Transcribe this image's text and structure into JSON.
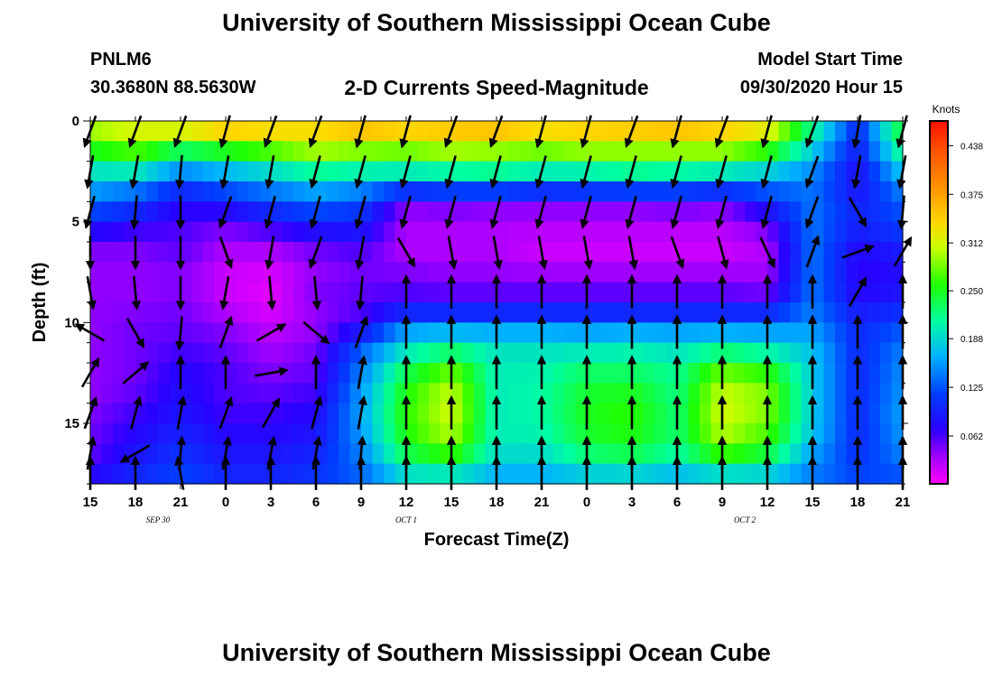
{
  "header": {
    "title": "University of Southern Mississippi Ocean Cube",
    "station": "PNLM6",
    "coords": "30.3680N 88.5630W",
    "subtitle": "2-D Currents Speed-Magnitude",
    "start_label": "Model Start Time",
    "start_value": "09/30/2020 Hour 15"
  },
  "footer": {
    "title": "University of Southern Mississippi Ocean Cube"
  },
  "chart_data": {
    "type": "heatmap",
    "xlabel": "Forecast Time(Z)",
    "ylabel": "Depth (ft)",
    "x_ticks": [
      "15",
      "18",
      "21",
      "0",
      "3",
      "6",
      "9",
      "12",
      "15",
      "18",
      "21",
      "0",
      "3",
      "6",
      "9",
      "12",
      "15",
      "18",
      "21"
    ],
    "date_labels": [
      {
        "label": "SEP 30",
        "at_hour": 4.5
      },
      {
        "label": "OCT 1",
        "at_hour": 21
      },
      {
        "label": "OCT 2",
        "at_hour": 43.5
      }
    ],
    "xlim_hours": [
      0,
      54
    ],
    "y_ticks": [
      0,
      5,
      10,
      15
    ],
    "ylim_ft": [
      0,
      18
    ],
    "colorbar": {
      "label": "Knots",
      "ticks": [
        "0.438",
        "0.375",
        "0.312",
        "0.250",
        "0.188",
        "0.125",
        "0.062"
      ],
      "tick_values": [
        0.438,
        0.375,
        0.312,
        0.25,
        0.188,
        0.125,
        0.062
      ],
      "range": [
        0,
        0.47
      ]
    },
    "depth_levels_ft": [
      0.25,
      1.0,
      2.0,
      3.0,
      4.0,
      5.0,
      6.0,
      7.0,
      8.0,
      9.0,
      10.0,
      11.0,
      12.0,
      13.0,
      14.0,
      15.0,
      16.0,
      17.0,
      17.75
    ],
    "speed_profile_knots": {
      "columns_hours": [
        0,
        3,
        6,
        9,
        12,
        15,
        18,
        21,
        24,
        27,
        30,
        33,
        36,
        39,
        42,
        45,
        48,
        51,
        54
      ],
      "note": "speed (knots) for each depth level, per column",
      "values": [
        [
          0.3,
          0.32,
          0.33,
          0.36,
          0.34,
          0.33,
          0.36,
          0.35,
          0.35,
          0.36,
          0.34,
          0.34,
          0.35,
          0.36,
          0.34,
          0.33,
          0.22,
          0.1,
          0.25
        ],
        [
          0.28,
          0.3,
          0.28,
          0.3,
          0.32,
          0.34,
          0.33,
          0.32,
          0.34,
          0.33,
          0.32,
          0.34,
          0.33,
          0.33,
          0.34,
          0.3,
          0.2,
          0.1,
          0.24
        ],
        [
          0.22,
          0.24,
          0.18,
          0.2,
          0.22,
          0.25,
          0.24,
          0.24,
          0.25,
          0.25,
          0.24,
          0.24,
          0.25,
          0.25,
          0.24,
          0.22,
          0.16,
          0.08,
          0.2
        ],
        [
          0.17,
          0.16,
          0.12,
          0.14,
          0.16,
          0.18,
          0.17,
          0.16,
          0.17,
          0.18,
          0.16,
          0.17,
          0.18,
          0.17,
          0.16,
          0.15,
          0.14,
          0.08,
          0.16
        ],
        [
          0.14,
          0.12,
          0.08,
          0.1,
          0.12,
          0.14,
          0.12,
          0.05,
          0.06,
          0.05,
          0.05,
          0.05,
          0.05,
          0.06,
          0.05,
          0.1,
          0.14,
          0.09,
          0.13
        ],
        [
          0.1,
          0.08,
          0.06,
          0.05,
          0.08,
          0.1,
          0.1,
          0.03,
          0.03,
          0.03,
          0.03,
          0.03,
          0.03,
          0.03,
          0.03,
          0.06,
          0.14,
          0.1,
          0.12
        ],
        [
          0.05,
          0.05,
          0.06,
          0.04,
          0.04,
          0.06,
          0.07,
          0.03,
          0.03,
          0.03,
          0.02,
          0.02,
          0.02,
          0.02,
          0.02,
          0.03,
          0.14,
          0.08,
          0.1
        ],
        [
          0.04,
          0.04,
          0.05,
          0.02,
          0.02,
          0.04,
          0.05,
          0.03,
          0.03,
          0.03,
          0.02,
          0.02,
          0.02,
          0.02,
          0.02,
          0.03,
          0.14,
          0.07,
          0.08
        ],
        [
          0.04,
          0.04,
          0.04,
          0.02,
          0.01,
          0.04,
          0.05,
          0.06,
          0.05,
          0.05,
          0.05,
          0.05,
          0.05,
          0.05,
          0.05,
          0.04,
          0.14,
          0.07,
          0.08
        ],
        [
          0.04,
          0.04,
          0.05,
          0.02,
          0.01,
          0.05,
          0.06,
          0.06,
          0.06,
          0.06,
          0.06,
          0.06,
          0.06,
          0.06,
          0.06,
          0.06,
          0.14,
          0.08,
          0.09
        ],
        [
          0.04,
          0.05,
          0.05,
          0.04,
          0.02,
          0.03,
          0.06,
          0.14,
          0.14,
          0.14,
          0.14,
          0.14,
          0.14,
          0.14,
          0.14,
          0.14,
          0.15,
          0.1,
          0.12
        ],
        [
          0.04,
          0.05,
          0.06,
          0.05,
          0.03,
          0.05,
          0.12,
          0.18,
          0.2,
          0.19,
          0.19,
          0.18,
          0.19,
          0.18,
          0.19,
          0.18,
          0.17,
          0.1,
          0.14
        ],
        [
          0.04,
          0.05,
          0.07,
          0.06,
          0.04,
          0.05,
          0.14,
          0.22,
          0.26,
          0.2,
          0.2,
          0.22,
          0.22,
          0.21,
          0.26,
          0.24,
          0.18,
          0.1,
          0.15
        ],
        [
          0.04,
          0.05,
          0.08,
          0.06,
          0.05,
          0.06,
          0.15,
          0.25,
          0.3,
          0.2,
          0.21,
          0.24,
          0.24,
          0.22,
          0.3,
          0.28,
          0.18,
          0.1,
          0.15
        ],
        [
          0.04,
          0.06,
          0.08,
          0.06,
          0.06,
          0.07,
          0.16,
          0.26,
          0.31,
          0.2,
          0.21,
          0.25,
          0.26,
          0.22,
          0.31,
          0.29,
          0.18,
          0.1,
          0.16
        ],
        [
          0.05,
          0.07,
          0.09,
          0.07,
          0.07,
          0.08,
          0.16,
          0.26,
          0.31,
          0.2,
          0.21,
          0.25,
          0.26,
          0.23,
          0.31,
          0.28,
          0.18,
          0.1,
          0.16
        ],
        [
          0.05,
          0.08,
          0.1,
          0.08,
          0.08,
          0.09,
          0.15,
          0.25,
          0.29,
          0.2,
          0.2,
          0.24,
          0.25,
          0.22,
          0.29,
          0.26,
          0.17,
          0.1,
          0.15
        ],
        [
          0.06,
          0.09,
          0.11,
          0.09,
          0.09,
          0.1,
          0.14,
          0.22,
          0.24,
          0.18,
          0.18,
          0.21,
          0.22,
          0.2,
          0.24,
          0.22,
          0.15,
          0.11,
          0.14
        ],
        [
          0.08,
          0.1,
          0.12,
          0.1,
          0.1,
          0.11,
          0.13,
          0.18,
          0.18,
          0.16,
          0.16,
          0.17,
          0.17,
          0.16,
          0.17,
          0.17,
          0.14,
          0.12,
          0.12
        ]
      ]
    },
    "vectors_note": "current direction arrows; angle in degrees clockwise from north (up)",
    "vector_depths_ft": [
      0.5,
      2.5,
      4.5,
      6.5,
      8.5,
      10.5,
      12.5,
      14.5,
      16.5,
      17.5
    ],
    "vector_angles_deg": [
      [
        200,
        200,
        200,
        195,
        200,
        200,
        195,
        195,
        200,
        200,
        195,
        195,
        200,
        195,
        200,
        195,
        200,
        190,
        195
      ],
      [
        190,
        190,
        185,
        190,
        190,
        195,
        195,
        195,
        195,
        195,
        195,
        195,
        195,
        195,
        195,
        195,
        200,
        190,
        190
      ],
      [
        195,
        185,
        180,
        200,
        195,
        195,
        195,
        195,
        195,
        195,
        195,
        195,
        195,
        195,
        195,
        195,
        200,
        150,
        185
      ],
      [
        180,
        180,
        180,
        160,
        190,
        200,
        190,
        150,
        170,
        170,
        170,
        170,
        170,
        160,
        165,
        155,
        20,
        70,
        30
      ],
      [
        170,
        175,
        180,
        190,
        175,
        175,
        185,
        0,
        0,
        0,
        0,
        0,
        0,
        0,
        0,
        0,
        0,
        30,
        0
      ],
      [
        300,
        150,
        185,
        20,
        60,
        130,
        20,
        0,
        0,
        0,
        0,
        0,
        0,
        0,
        0,
        0,
        0,
        0,
        0
      ],
      [
        30,
        50,
        0,
        0,
        80,
        0,
        10,
        0,
        0,
        0,
        0,
        0,
        0,
        0,
        0,
        0,
        0,
        0,
        0
      ],
      [
        20,
        15,
        10,
        20,
        30,
        15,
        10,
        0,
        0,
        0,
        0,
        0,
        0,
        0,
        0,
        0,
        0,
        0,
        0
      ],
      [
        10,
        240,
        5,
        10,
        10,
        10,
        5,
        0,
        0,
        0,
        0,
        0,
        0,
        0,
        0,
        0,
        0,
        0,
        0
      ],
      [
        0,
        0,
        350,
        0,
        0,
        0,
        0,
        0,
        0,
        0,
        0,
        0,
        0,
        0,
        0,
        0,
        0,
        0,
        0
      ]
    ]
  }
}
